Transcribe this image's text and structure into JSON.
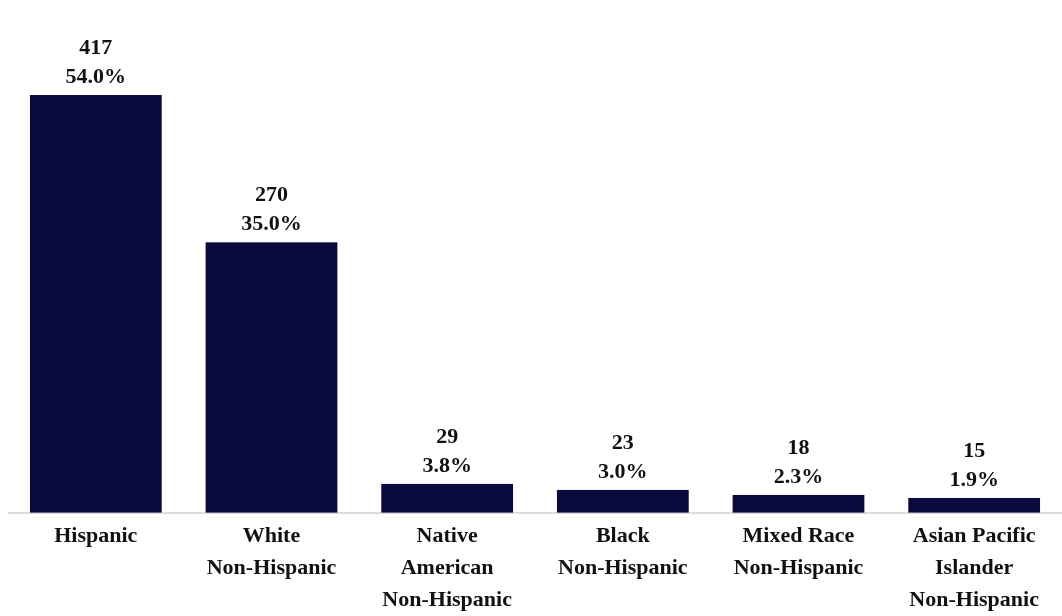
{
  "chart_data": {
    "type": "bar",
    "categories": [
      "Hispanic",
      "White\nNon-Hispanic",
      "Native\nAmerican\nNon-Hispanic",
      "Black\nNon-Hispanic",
      "Mixed Race\nNon-Hispanic",
      "Asian Pacific\nIslander\nNon-Hispanic"
    ],
    "values": [
      417,
      270,
      29,
      23,
      18,
      15
    ],
    "value_labels": [
      "417\n54.0%",
      "270\n35.0%",
      "29\n3.8%",
      "23\n3.0%",
      "18\n2.3%",
      "15\n1.9%"
    ],
    "color": "#0a0a3c"
  }
}
